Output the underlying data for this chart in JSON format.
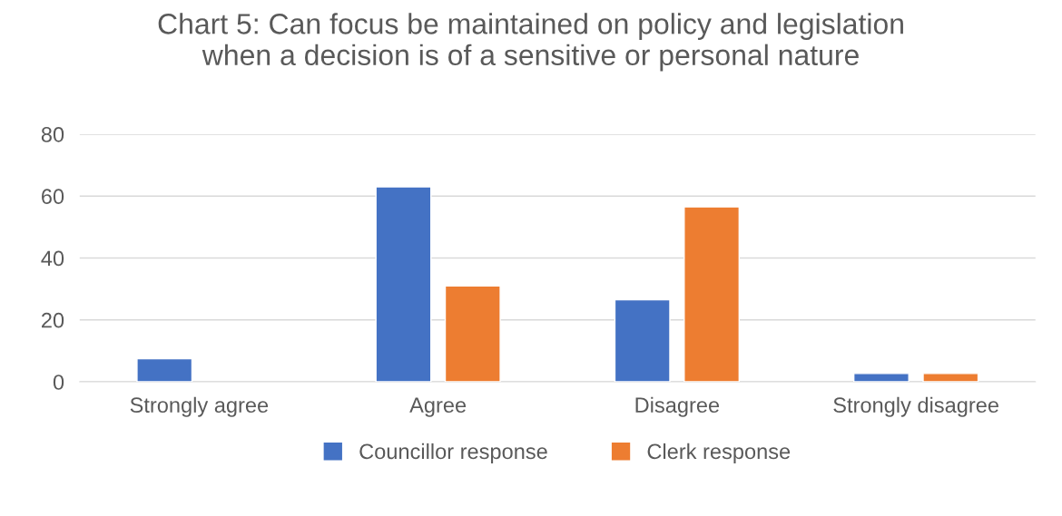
{
  "chart_data": {
    "type": "bar",
    "title": "Chart 5: Can focus be maintained on policy and legislation\nwhen a decision is of a sensitive or personal nature",
    "categories": [
      "Strongly agree",
      "Agree",
      "Disagree",
      "Strongly disagree"
    ],
    "series": [
      {
        "name": "Councillor response",
        "color": "#4472c4",
        "values": [
          7.5,
          63,
          26.5,
          2.7
        ]
      },
      {
        "name": "Clerk response",
        "color": "#ed7d31",
        "values": [
          null,
          31,
          56.5,
          2.7
        ]
      }
    ],
    "ylim": [
      0,
      80
    ],
    "yticks": [
      0,
      20,
      40,
      60,
      80
    ],
    "grid": "y",
    "legend": "bottom"
  }
}
